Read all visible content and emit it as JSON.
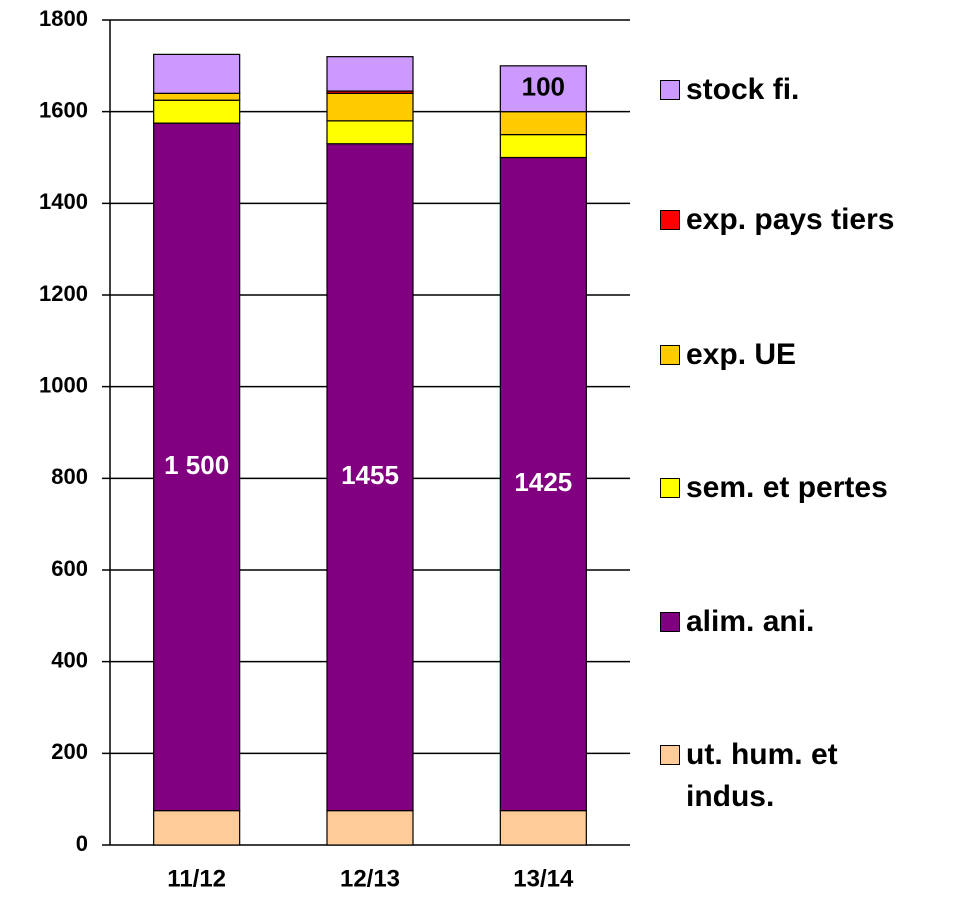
{
  "chart_data": {
    "type": "stacked-bar",
    "categories": [
      "11/12",
      "12/13",
      "13/14"
    ],
    "series": [
      {
        "name": "ut. hum. et indus.",
        "color": "#ffcc99",
        "values": [
          75,
          75,
          75
        ]
      },
      {
        "name": "alim. ani.",
        "color": "#800080",
        "values": [
          1500,
          1455,
          1425
        ],
        "value_labels": [
          "1 500",
          "1455",
          "1425"
        ]
      },
      {
        "name": "sem. et pertes",
        "color": "#ffff00",
        "values": [
          50,
          50,
          50
        ]
      },
      {
        "name": "exp. UE",
        "color": "#ffcc00",
        "values": [
          15,
          60,
          50
        ]
      },
      {
        "name": "exp. pays tiers",
        "color": "#ff0000",
        "values": [
          0,
          5,
          0
        ]
      },
      {
        "name": "stock fi.",
        "color": "#cc99ff",
        "values": [
          85,
          75,
          100
        ],
        "value_labels": [
          null,
          null,
          "100"
        ]
      }
    ],
    "ylim": [
      0,
      1800
    ],
    "yticks": [
      0,
      200,
      400,
      600,
      800,
      1000,
      1200,
      1400,
      1600,
      1800
    ],
    "grid": true
  }
}
